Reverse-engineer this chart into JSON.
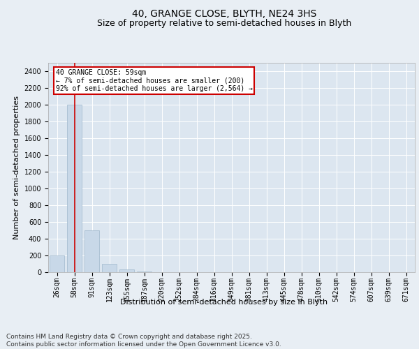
{
  "title": "40, GRANGE CLOSE, BLYTH, NE24 3HS",
  "subtitle": "Size of property relative to semi-detached houses in Blyth",
  "xlabel": "Distribution of semi-detached houses by size in Blyth",
  "ylabel": "Number of semi-detached properties",
  "bar_color": "#c8d8e8",
  "bar_edge_color": "#a0b8cc",
  "background_color": "#e8eef4",
  "plot_bg_color": "#dce6f0",
  "grid_color": "#ffffff",
  "annotation_text": "40 GRANGE CLOSE: 59sqm\n← 7% of semi-detached houses are smaller (200)\n92% of semi-detached houses are larger (2,564) →",
  "annotation_box_color": "#ffffff",
  "annotation_box_edge": "#cc0000",
  "vline_x": 1,
  "vline_color": "#cc0000",
  "categories": [
    "26sqm",
    "58sqm",
    "91sqm",
    "123sqm",
    "155sqm",
    "187sqm",
    "220sqm",
    "252sqm",
    "284sqm",
    "316sqm",
    "349sqm",
    "381sqm",
    "413sqm",
    "445sqm",
    "478sqm",
    "510sqm",
    "542sqm",
    "574sqm",
    "607sqm",
    "639sqm",
    "671sqm"
  ],
  "values": [
    200,
    2000,
    500,
    100,
    30,
    5,
    0,
    0,
    0,
    0,
    0,
    0,
    0,
    0,
    0,
    0,
    0,
    0,
    0,
    0,
    0
  ],
  "ylim": [
    0,
    2500
  ],
  "yticks": [
    0,
    200,
    400,
    600,
    800,
    1000,
    1200,
    1400,
    1600,
    1800,
    2000,
    2200,
    2400
  ],
  "footer_text": "Contains HM Land Registry data © Crown copyright and database right 2025.\nContains public sector information licensed under the Open Government Licence v3.0.",
  "title_fontsize": 10,
  "subtitle_fontsize": 9,
  "axis_label_fontsize": 8,
  "tick_fontsize": 7,
  "footer_fontsize": 6.5
}
